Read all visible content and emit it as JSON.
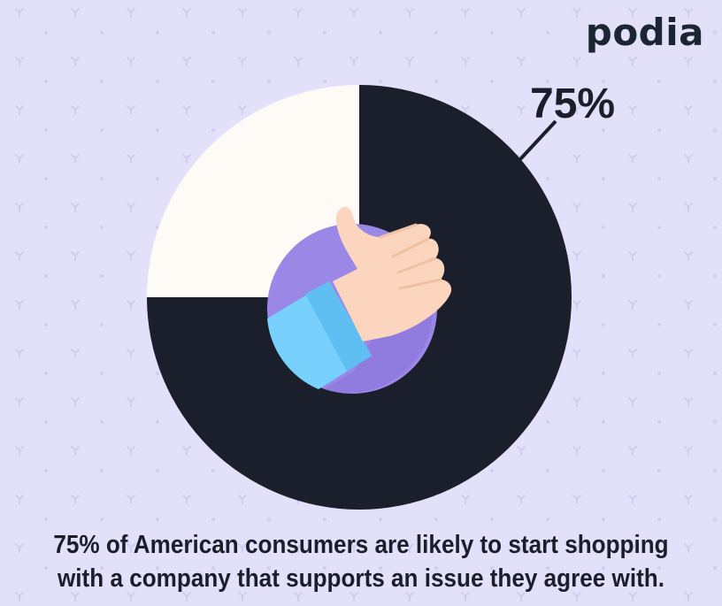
{
  "brand": {
    "logo_text": "podia"
  },
  "colors": {
    "background": "#e3e0fa",
    "pattern": "#d4d0ee",
    "major_slice": "#1a1f2b",
    "minor_slice": "#fefaf6",
    "hand": "#fbd5bd",
    "sleeve": "#78d0fc",
    "circle": "#9b87e6"
  },
  "chart_data": {
    "type": "pie",
    "slices": [
      {
        "label": "75%",
        "value": 75,
        "color": "#1a1f2b"
      },
      {
        "label": "",
        "value": 25,
        "color": "#fefaf6"
      }
    ],
    "center_icon": "thumbs-up-icon"
  },
  "caption": {
    "line1": "75% of American consumers are likely to start shopping",
    "line2": "with a company that supports an issue they agree with."
  }
}
